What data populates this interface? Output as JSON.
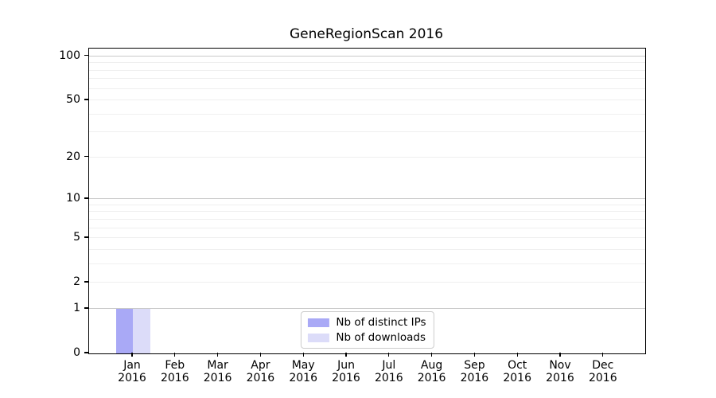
{
  "chart_data": {
    "type": "bar",
    "title": "GeneRegionScan 2016",
    "x": {
      "categories": [
        "Jan",
        "Feb",
        "Mar",
        "Apr",
        "May",
        "Jun",
        "Jul",
        "Aug",
        "Sep",
        "Oct",
        "Nov",
        "Dec"
      ],
      "year": "2016"
    },
    "series": [
      {
        "name": "Nb of distinct IPs",
        "color": "#a9a9f6",
        "values": [
          1,
          0,
          0,
          0,
          0,
          0,
          0,
          0,
          0,
          0,
          0,
          0
        ]
      },
      {
        "name": "Nb of downloads",
        "color": "#dcdcf9",
        "values": [
          1,
          0,
          0,
          0,
          0,
          0,
          0,
          0,
          0,
          0,
          0,
          0
        ]
      }
    ],
    "y_axis": {
      "scale": "log1p",
      "tick_values": [
        0,
        1,
        2,
        5,
        10,
        20,
        50,
        100
      ],
      "range": [
        0,
        113
      ]
    },
    "gridlines": {
      "major_values": [
        1,
        10,
        100
      ],
      "minor_values": [
        2,
        3,
        4,
        5,
        6,
        7,
        8,
        9,
        20,
        30,
        40,
        50,
        60,
        70,
        80,
        90
      ],
      "major_color": "#c9c9c9",
      "minor_color": "#efefef"
    },
    "legend": {
      "position": "lower center"
    },
    "grid": "horizontal-only",
    "background": "#ffffff",
    "axis_color": "#000000"
  }
}
